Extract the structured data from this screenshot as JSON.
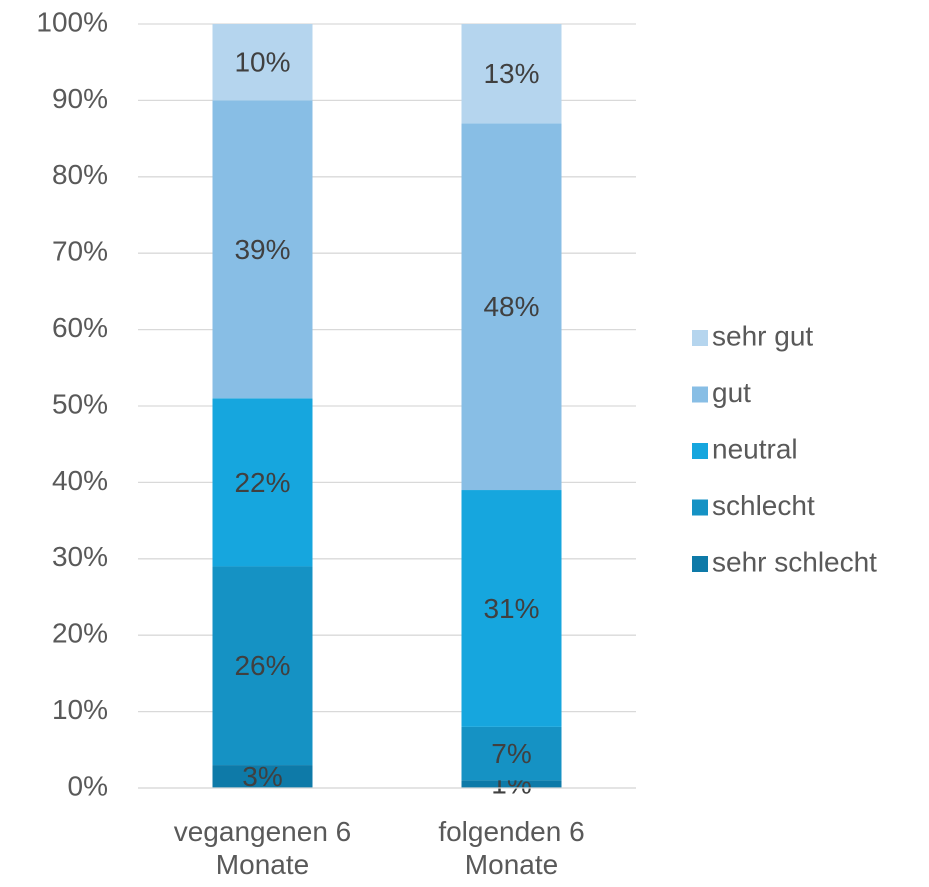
{
  "chart_data": {
    "type": "stacked_bar",
    "categories": [
      "vegangenen 6 Monate",
      "folgenden 6 Monate"
    ],
    "series": [
      {
        "name": "sehr schlecht",
        "color": "#0e7aa8",
        "values": [
          3,
          1
        ],
        "value_labels": [
          "3%",
          "1%"
        ]
      },
      {
        "name": "schlecht",
        "color": "#1592c4",
        "values": [
          26,
          7
        ],
        "value_labels": [
          "26%",
          "7%"
        ]
      },
      {
        "name": "neutral",
        "color": "#16a6de",
        "values": [
          22,
          31
        ],
        "value_labels": [
          "22%",
          "31%"
        ]
      },
      {
        "name": "gut",
        "color": "#88bee5",
        "values": [
          39,
          48
        ],
        "value_labels": [
          "39%",
          "48%"
        ]
      },
      {
        "name": "sehr gut",
        "color": "#b5d5ee",
        "values": [
          10,
          13
        ],
        "value_labels": [
          "10%",
          "13%"
        ]
      }
    ],
    "ylim": [
      0,
      100
    ],
    "yticks": [
      {
        "value": 0,
        "label": "0%"
      },
      {
        "value": 10,
        "label": "10%"
      },
      {
        "value": 20,
        "label": "20%"
      },
      {
        "value": 30,
        "label": "30%"
      },
      {
        "value": 40,
        "label": "40%"
      },
      {
        "value": 50,
        "label": "50%"
      },
      {
        "value": 60,
        "label": "60%"
      },
      {
        "value": 70,
        "label": "70%"
      },
      {
        "value": 80,
        "label": "80%"
      },
      {
        "value": 90,
        "label": "90%"
      },
      {
        "value": 100,
        "label": "100%"
      }
    ],
    "grid": true,
    "legend": "right"
  }
}
